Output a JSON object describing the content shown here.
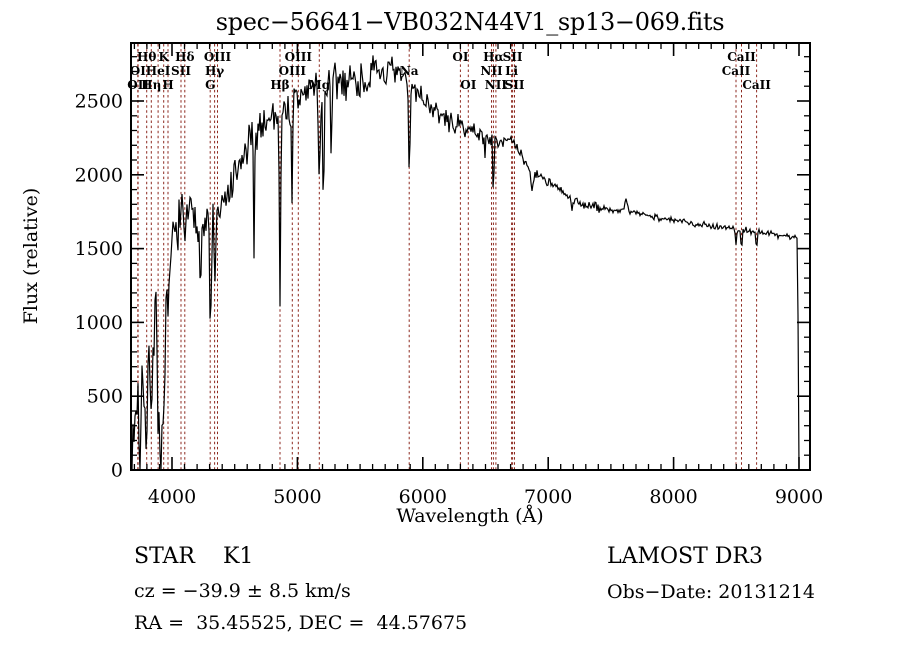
{
  "title": "spec−56641−VB032N44V1_sp13−069.fits",
  "colors": {
    "background": "#ffffff",
    "spectrum": "#000000",
    "axis": "#000000",
    "line_marker": "#8e2a20"
  },
  "captions": {
    "class_label": "STAR    K1",
    "survey": "LAMOST DR3",
    "cz": "cz = −39.9 ± 8.5 km/s",
    "obs_date": "Obs−Date: 20131214",
    "coords": "RA =  35.45525, DEC =  44.57675"
  },
  "chart_data": {
    "type": "line",
    "title": "spec−56641−VB032N44V1_sp13−069.fits",
    "xlabel": "Wavelength (Å)",
    "ylabel": "Flux (relative)",
    "xlim": [
      3673,
      9088
    ],
    "ylim": [
      0,
      2893
    ],
    "x_ticks": [
      4000,
      5000,
      6000,
      7000,
      8000,
      9000
    ],
    "y_ticks": [
      0,
      500,
      1000,
      1500,
      2000,
      2500
    ],
    "x_minor_step": 100,
    "y_minor_step": 100,
    "grid": false,
    "legend": false,
    "spectral_lines": [
      [
        3727,
        "OI",
        2
      ],
      [
        3730,
        "OII",
        3
      ],
      [
        3798,
        "Hθ",
        1
      ],
      [
        3835,
        "Hη",
        3
      ],
      [
        3889,
        "HeI",
        2
      ],
      [
        3934,
        "K",
        1
      ],
      [
        3968,
        "H",
        3
      ],
      [
        4072,
        "SII",
        2
      ],
      [
        4102,
        "Hδ",
        1
      ],
      [
        4305,
        "G",
        3
      ],
      [
        4340,
        "Hγ",
        2
      ],
      [
        4363,
        "OIII",
        1
      ],
      [
        4861,
        "Hβ",
        3
      ],
      [
        4959,
        "OIII",
        2
      ],
      [
        5007,
        "OIII",
        1
      ],
      [
        5175,
        "Mg",
        3
      ],
      [
        5892,
        "Na",
        2
      ],
      [
        6300,
        "OI",
        1
      ],
      [
        6363,
        "OI",
        3
      ],
      [
        6548,
        "NII",
        2
      ],
      [
        6563,
        "Hα",
        1
      ],
      [
        6583,
        "NII",
        3
      ],
      [
        6708,
        "Li",
        2
      ],
      [
        6716,
        "SII",
        1
      ],
      [
        6731,
        "SII",
        3
      ],
      [
        8498,
        "CaII",
        2
      ],
      [
        8542,
        "CaII",
        1
      ],
      [
        8662,
        "CaII",
        3
      ]
    ],
    "series": [
      {
        "name": "spectrum",
        "seed": 7,
        "envelope": [
          [
            3675,
            40
          ],
          [
            3685,
            90
          ],
          [
            3698,
            220
          ],
          [
            3706,
            480
          ],
          [
            3714,
            300
          ],
          [
            3724,
            640
          ],
          [
            3734,
            380
          ],
          [
            3744,
            300
          ],
          [
            3756,
            620
          ],
          [
            3766,
            820
          ],
          [
            3776,
            600
          ],
          [
            3786,
            340
          ],
          [
            3796,
            430
          ],
          [
            3806,
            560
          ],
          [
            3816,
            700
          ],
          [
            3826,
            650
          ],
          [
            3836,
            830
          ],
          [
            3846,
            950
          ],
          [
            3856,
            820
          ],
          [
            3866,
            1080
          ],
          [
            3876,
            1120
          ],
          [
            3886,
            820
          ],
          [
            3896,
            580
          ],
          [
            3906,
            380
          ],
          [
            3916,
            340
          ],
          [
            3926,
            560
          ],
          [
            3936,
            740
          ],
          [
            3946,
            950
          ],
          [
            3956,
            1130
          ],
          [
            3966,
            1300
          ],
          [
            3976,
            1380
          ],
          [
            3988,
            1480
          ],
          [
            4000,
            1520
          ],
          [
            4030,
            1620
          ],
          [
            4060,
            1700
          ],
          [
            4090,
            1760
          ],
          [
            4120,
            1800
          ],
          [
            4150,
            1720
          ],
          [
            4190,
            1650
          ],
          [
            4230,
            1650
          ],
          [
            4270,
            1670
          ],
          [
            4310,
            1700
          ],
          [
            4350,
            1690
          ],
          [
            4400,
            1760
          ],
          [
            4450,
            1860
          ],
          [
            4500,
            1960
          ],
          [
            4550,
            2060
          ],
          [
            4600,
            2180
          ],
          [
            4650,
            2280
          ],
          [
            4700,
            2330
          ],
          [
            4750,
            2370
          ],
          [
            4800,
            2400
          ],
          [
            4850,
            2420
          ],
          [
            4900,
            2430
          ],
          [
            4950,
            2445
          ],
          [
            5000,
            2500
          ],
          [
            5060,
            2560
          ],
          [
            5120,
            2590
          ],
          [
            5180,
            2590
          ],
          [
            5240,
            2600
          ],
          [
            5300,
            2620
          ],
          [
            5360,
            2640
          ],
          [
            5420,
            2650
          ],
          [
            5480,
            2635
          ],
          [
            5540,
            2645
          ],
          [
            5600,
            2675
          ],
          [
            5660,
            2700
          ],
          [
            5720,
            2690
          ],
          [
            5780,
            2670
          ],
          [
            5840,
            2650
          ],
          [
            5900,
            2620
          ],
          [
            5950,
            2580
          ],
          [
            6000,
            2525
          ],
          [
            6060,
            2465
          ],
          [
            6120,
            2415
          ],
          [
            6180,
            2375
          ],
          [
            6240,
            2345
          ],
          [
            6300,
            2325
          ],
          [
            6360,
            2310
          ],
          [
            6420,
            2290
          ],
          [
            6480,
            2270
          ],
          [
            6540,
            2250
          ],
          [
            6600,
            2235
          ],
          [
            6650,
            2250
          ],
          [
            6700,
            2230
          ],
          [
            6750,
            2180
          ],
          [
            6800,
            2110
          ],
          [
            6850,
            2040
          ],
          [
            6900,
            2005
          ],
          [
            6950,
            1985
          ],
          [
            7000,
            1955
          ],
          [
            7100,
            1885
          ],
          [
            7200,
            1835
          ],
          [
            7300,
            1795
          ],
          [
            7400,
            1775
          ],
          [
            7500,
            1762
          ],
          [
            7600,
            1752
          ],
          [
            7700,
            1742
          ],
          [
            7800,
            1728
          ],
          [
            7900,
            1705
          ],
          [
            8000,
            1692
          ],
          [
            8100,
            1678
          ],
          [
            8200,
            1666
          ],
          [
            8300,
            1656
          ],
          [
            8400,
            1646
          ],
          [
            8500,
            1636
          ],
          [
            8600,
            1622
          ],
          [
            8700,
            1608
          ],
          [
            8800,
            1596
          ],
          [
            8900,
            1586
          ],
          [
            8980,
            1576
          ],
          [
            8990,
            1560
          ],
          [
            8992,
            1150
          ],
          [
            8994,
            500
          ],
          [
            8996,
            170
          ],
          [
            8998,
            15
          ]
        ],
        "noise_regions": [
          [
            3673,
            3995,
            270
          ],
          [
            3995,
            4400,
            185
          ],
          [
            4400,
            5000,
            170
          ],
          [
            5000,
            5500,
            190
          ],
          [
            5500,
            5950,
            140
          ],
          [
            5950,
            6300,
            85
          ],
          [
            6300,
            6700,
            65
          ],
          [
            6700,
            7500,
            42
          ],
          [
            7500,
            8985,
            26
          ],
          [
            8985,
            9000,
            5
          ]
        ],
        "absorption_dips": [
          [
            3748,
            6,
            380
          ],
          [
            3797,
            6,
            330
          ],
          [
            3837,
            6,
            300
          ],
          [
            3890,
            6,
            330
          ],
          [
            3912,
            8,
            380
          ],
          [
            3934,
            7,
            480
          ],
          [
            3969,
            7,
            430
          ],
          [
            4102,
            7,
            320
          ],
          [
            4227,
            5,
            260
          ],
          [
            4307,
            6,
            800
          ],
          [
            4341,
            5,
            500
          ],
          [
            4654,
            4,
            1000
          ],
          [
            4861,
            5,
            1300
          ],
          [
            4957,
            5,
            550
          ],
          [
            5175,
            7,
            580
          ],
          [
            5207,
            5,
            920
          ],
          [
            5270,
            5,
            560
          ],
          [
            5893,
            6,
            640
          ],
          [
            6495,
            4,
            180
          ],
          [
            6563,
            4,
            500
          ],
          [
            6870,
            9,
            120
          ],
          [
            7190,
            8,
            90
          ],
          [
            8498,
            5,
            120
          ],
          [
            8542,
            5,
            140
          ],
          [
            8662,
            5,
            110
          ]
        ],
        "emission_bumps": [
          [
            7620,
            9,
            90
          ]
        ]
      }
    ]
  }
}
